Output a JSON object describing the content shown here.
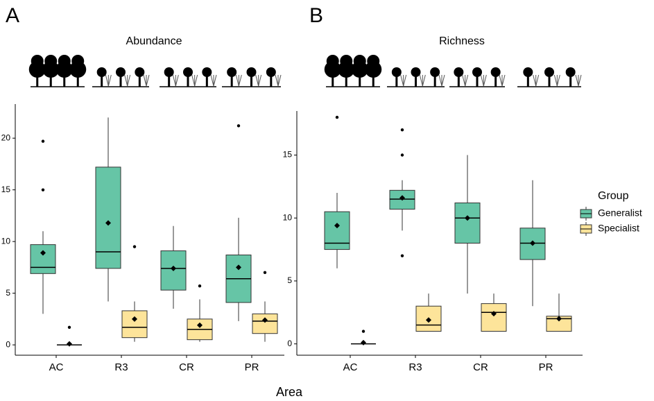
{
  "chart_data": [
    {
      "type": "box",
      "panel": "A",
      "title": "Abundance",
      "categories": [
        "AC",
        "R3",
        "CR",
        "PR"
      ],
      "ylim": [
        -1,
        23.3
      ],
      "yticks": [
        0,
        5,
        10,
        15,
        20
      ],
      "series": [
        {
          "name": "Generalist",
          "color": "#66c5a6",
          "whisker_low": [
            3,
            4.2,
            3.5,
            2.3
          ],
          "q1": [
            6.9,
            7.4,
            5.3,
            4.1
          ],
          "median": [
            7.5,
            9,
            7.4,
            6.4
          ],
          "q3": [
            9.7,
            17.2,
            9.1,
            8.7
          ],
          "whisker_high": [
            11,
            22,
            11.5,
            12.3
          ],
          "mean": [
            8.9,
            11.8,
            7.4,
            7.5
          ],
          "outliers": [
            [
              15,
              19.7
            ],
            [],
            [],
            [
              21.2
            ]
          ]
        },
        {
          "name": "Specialist",
          "color": "#fde49a",
          "whisker_low": [
            0,
            0.3,
            0.3,
            0.3
          ],
          "q1": [
            0,
            0.7,
            0.5,
            1.1
          ],
          "median": [
            0,
            1.7,
            1.5,
            2.3
          ],
          "q3": [
            0,
            3.3,
            2.5,
            3
          ],
          "whisker_high": [
            0,
            4.2,
            4.4,
            4.2
          ],
          "mean": [
            0.1,
            2.5,
            1.9,
            2.4
          ],
          "outliers": [
            [
              1.7
            ],
            [
              9.5
            ],
            [
              5.7
            ],
            [
              7
            ]
          ]
        }
      ]
    },
    {
      "type": "box",
      "panel": "B",
      "title": "Richness",
      "categories": [
        "AC",
        "R3",
        "CR",
        "PR"
      ],
      "ylim": [
        -0.9,
        18.5
      ],
      "yticks": [
        0,
        5,
        10,
        15
      ],
      "series": [
        {
          "name": "Generalist",
          "color": "#66c5a6",
          "whisker_low": [
            6,
            9,
            4,
            3
          ],
          "q1": [
            7.5,
            10.7,
            8,
            6.7
          ],
          "median": [
            8,
            11.5,
            10,
            8
          ],
          "q3": [
            10.5,
            12.2,
            11.2,
            9.2
          ],
          "whisker_high": [
            12,
            13,
            15,
            13
          ],
          "mean": [
            9.4,
            11.6,
            10,
            8
          ],
          "outliers": [
            [
              18
            ],
            [
              7,
              15,
              17
            ],
            [],
            []
          ]
        },
        {
          "name": "Specialist",
          "color": "#fde49a",
          "whisker_low": [
            0,
            1,
            1,
            1
          ],
          "q1": [
            0,
            1,
            1,
            1
          ],
          "median": [
            0,
            1.5,
            2.5,
            2
          ],
          "q3": [
            0,
            3,
            3.2,
            2.2
          ],
          "whisker_high": [
            0,
            4,
            4,
            4
          ],
          "mean": [
            0.1,
            1.9,
            2.4,
            2
          ],
          "outliers": [
            [
              1
            ],
            [],
            [],
            []
          ]
        }
      ]
    }
  ],
  "x_label": "Area",
  "legend_title": "Group"
}
